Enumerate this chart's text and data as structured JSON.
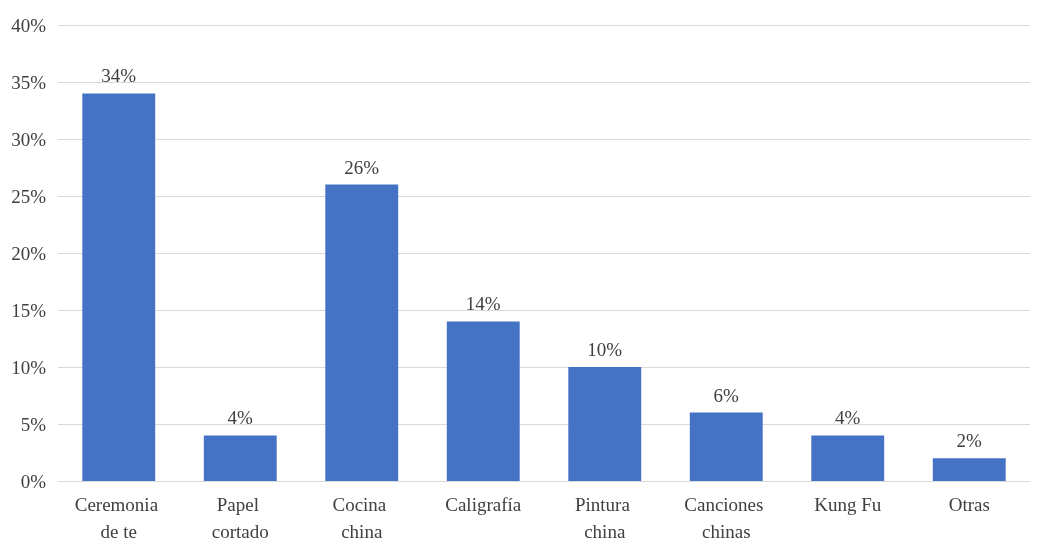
{
  "chart_data": {
    "type": "bar",
    "categories": [
      "Ceremonia de te",
      "Papel cortado",
      "Cocina china",
      "Caligrafía",
      "Pintura china",
      "Canciones chinas",
      "Kung Fu",
      "Otras"
    ],
    "values": [
      34,
      4,
      26,
      14,
      10,
      6,
      4,
      2
    ],
    "value_labels": [
      "34%",
      "4%",
      "26%",
      "14%",
      "10%",
      "6%",
      "4%",
      "2%"
    ],
    "color": "#4472c4",
    "ylim": [
      0,
      40
    ],
    "yticks": [
      {
        "value": 0,
        "label": "0%"
      },
      {
        "value": 5,
        "label": "5%"
      },
      {
        "value": 10,
        "label": "10%"
      },
      {
        "value": 15,
        "label": "15%"
      },
      {
        "value": 20,
        "label": "20%"
      },
      {
        "value": 25,
        "label": "25%"
      },
      {
        "value": 30,
        "label": "30%"
      },
      {
        "value": 35,
        "label": "35%"
      },
      {
        "value": 40,
        "label": "40%"
      }
    ],
    "grid": "y"
  }
}
